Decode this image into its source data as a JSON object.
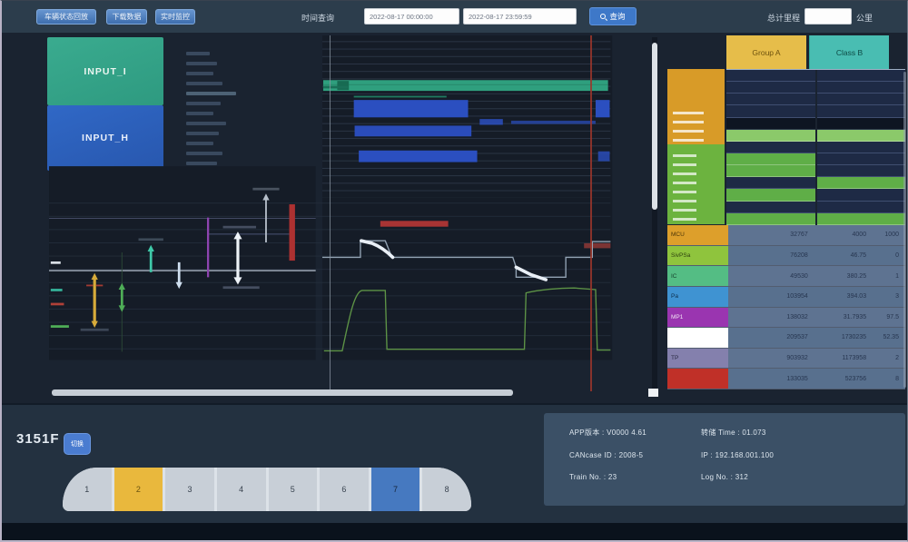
{
  "topbar": {
    "buttons": [
      "车辆状态回放",
      "下载数据",
      "实时监控"
    ],
    "time_label": "时间查询",
    "time_from": "2022-08-17 00:00:00",
    "time_to": "2022-08-17 23:59:59",
    "search_label": "查询",
    "mileage_label": "总计里程",
    "mileage_value": "",
    "mileage_unit": "公里"
  },
  "left_panel": {
    "input_i": "INPUT_I",
    "input_h": "INPUT_H"
  },
  "right_panel": {
    "tabs": [
      {
        "label": "Group A"
      },
      {
        "label": "Class B"
      }
    ],
    "status_colors": {
      "navy": "#1e2a45",
      "black": "#0e1522",
      "green": "#5fae47",
      "green2": "#8bc96a"
    },
    "status_rows": [
      {
        "l": "navy",
        "r": "navy"
      },
      {
        "l": "navy",
        "r": "navy"
      },
      {
        "l": "navy",
        "r": "navy"
      },
      {
        "l": "navy",
        "r": "navy"
      },
      {
        "l": "black",
        "r": "black"
      },
      {
        "l": "green2",
        "r": "green2"
      },
      {
        "l": "navy",
        "r": "navy"
      },
      {
        "l": "green",
        "r": "navy"
      },
      {
        "l": "green",
        "r": "navy"
      },
      {
        "l": "navy",
        "r": "green"
      },
      {
        "l": "green",
        "r": "navy"
      },
      {
        "l": "navy",
        "r": "navy"
      },
      {
        "l": "green",
        "r": "green"
      }
    ],
    "table": {
      "rows": [
        {
          "label": "MCU",
          "color": "#dd9f2b",
          "text": "#4a3508",
          "v1": "32767",
          "v2": "4000",
          "v3": "1000"
        },
        {
          "label": "SivPSa",
          "color": "#8fc43d",
          "text": "#2e4010",
          "v1": "76208",
          "v2": "46.75",
          "v3": "0"
        },
        {
          "label": "IC",
          "color": "#54bd84",
          "text": "#17402c",
          "v1": "49530",
          "v2": "380.25",
          "v3": "1"
        },
        {
          "label": "Pa",
          "color": "#3f93d2",
          "text": "#0f2e4a",
          "v1": "103954",
          "v2": "394.03",
          "v3": "3"
        },
        {
          "label": "MP1",
          "color": "#9a35b0",
          "text": "#f0e4f4",
          "v1": "138032",
          "v2": "31.7935",
          "v3": "97.5"
        },
        {
          "label": "",
          "color": "#ffffff",
          "text": "#333333",
          "v1": "209537",
          "v2": "1730235",
          "v3": "52.35"
        },
        {
          "label": "TP",
          "color": "#8480ad",
          "text": "#2a2a44",
          "v1": "903932",
          "v2": "1173958",
          "v3": "2"
        },
        {
          "label": "",
          "color": "#c03028",
          "text": "#ffffff",
          "v1": "133035",
          "v2": "523756",
          "v3": "8"
        }
      ]
    }
  },
  "bottom": {
    "train_id": "3151F",
    "switch_button": "切换",
    "cars": [
      {
        "num": "1",
        "variant": "head"
      },
      {
        "num": "2",
        "variant": "yellow"
      },
      {
        "num": "3",
        "variant": ""
      },
      {
        "num": "4",
        "variant": ""
      },
      {
        "num": "5",
        "variant": ""
      },
      {
        "num": "6",
        "variant": ""
      },
      {
        "num": "7",
        "variant": "blue"
      },
      {
        "num": "8",
        "variant": "tail"
      }
    ],
    "info_left": [
      "APP版本 : V0000 4.61",
      "CANcase ID : 2008-5",
      "Train No. : 23"
    ],
    "info_right": [
      "转储 Time : 01.073",
      "IP : 192.168.001.100",
      "Log No. : 312"
    ]
  }
}
